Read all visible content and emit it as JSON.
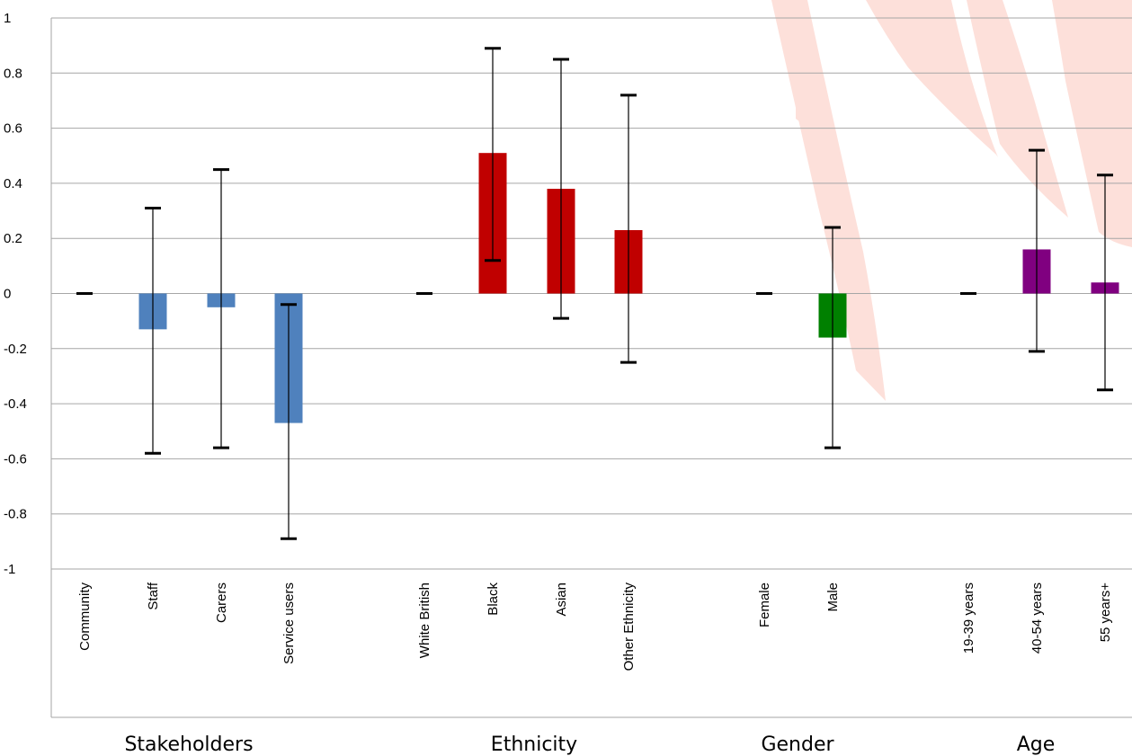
{
  "chart_data": {
    "type": "bar",
    "ylim": [
      -1,
      1
    ],
    "yticks": [
      1,
      0.8,
      0.6,
      0.4,
      0.2,
      0,
      -0.2,
      -0.4,
      -0.6,
      -0.8,
      -1
    ],
    "ytick_labels": [
      "1",
      "0.8",
      "0.6",
      "0.4",
      "0.2",
      "0",
      "-0.2",
      "-0.4",
      "-0.6",
      "-0.8",
      "-1"
    ],
    "grid": true,
    "legend": "none",
    "error_bars": true,
    "groups": [
      {
        "label": "Stakeholders",
        "color": "#4f81bd",
        "categories": [
          "Community",
          "Staff",
          "Carers",
          "Service users"
        ],
        "values": [
          0,
          -0.13,
          -0.05,
          -0.47
        ],
        "ci_low": [
          0,
          -0.58,
          -0.56,
          -0.89
        ],
        "ci_high": [
          0,
          0.31,
          0.45,
          -0.04
        ]
      },
      {
        "label": "Ethnicity",
        "color": "#c00000",
        "categories": [
          "White British",
          "Black",
          "Asian",
          "Other Ethnicity"
        ],
        "values": [
          0,
          0.51,
          0.38,
          0.23
        ],
        "ci_low": [
          0,
          0.12,
          -0.09,
          -0.25
        ],
        "ci_high": [
          0,
          0.89,
          0.85,
          0.72
        ]
      },
      {
        "label": "Gender",
        "color": "#008000",
        "categories": [
          "Female",
          "Male"
        ],
        "values": [
          0,
          -0.16
        ],
        "ci_low": [
          0,
          -0.56
        ],
        "ci_high": [
          0,
          0.24
        ]
      },
      {
        "label": "Age",
        "color": "#800080",
        "categories": [
          "19-39 years",
          "40-54 years",
          "55 years+"
        ],
        "values": [
          0,
          0.16,
          0.04
        ],
        "ci_low": [
          0,
          -0.21,
          -0.35
        ],
        "ci_high": [
          0,
          0.52,
          0.43
        ]
      }
    ]
  },
  "colors": {
    "watermark": "#fde0da",
    "gridline": "#a6a6a6",
    "error_bar": "#000000"
  }
}
